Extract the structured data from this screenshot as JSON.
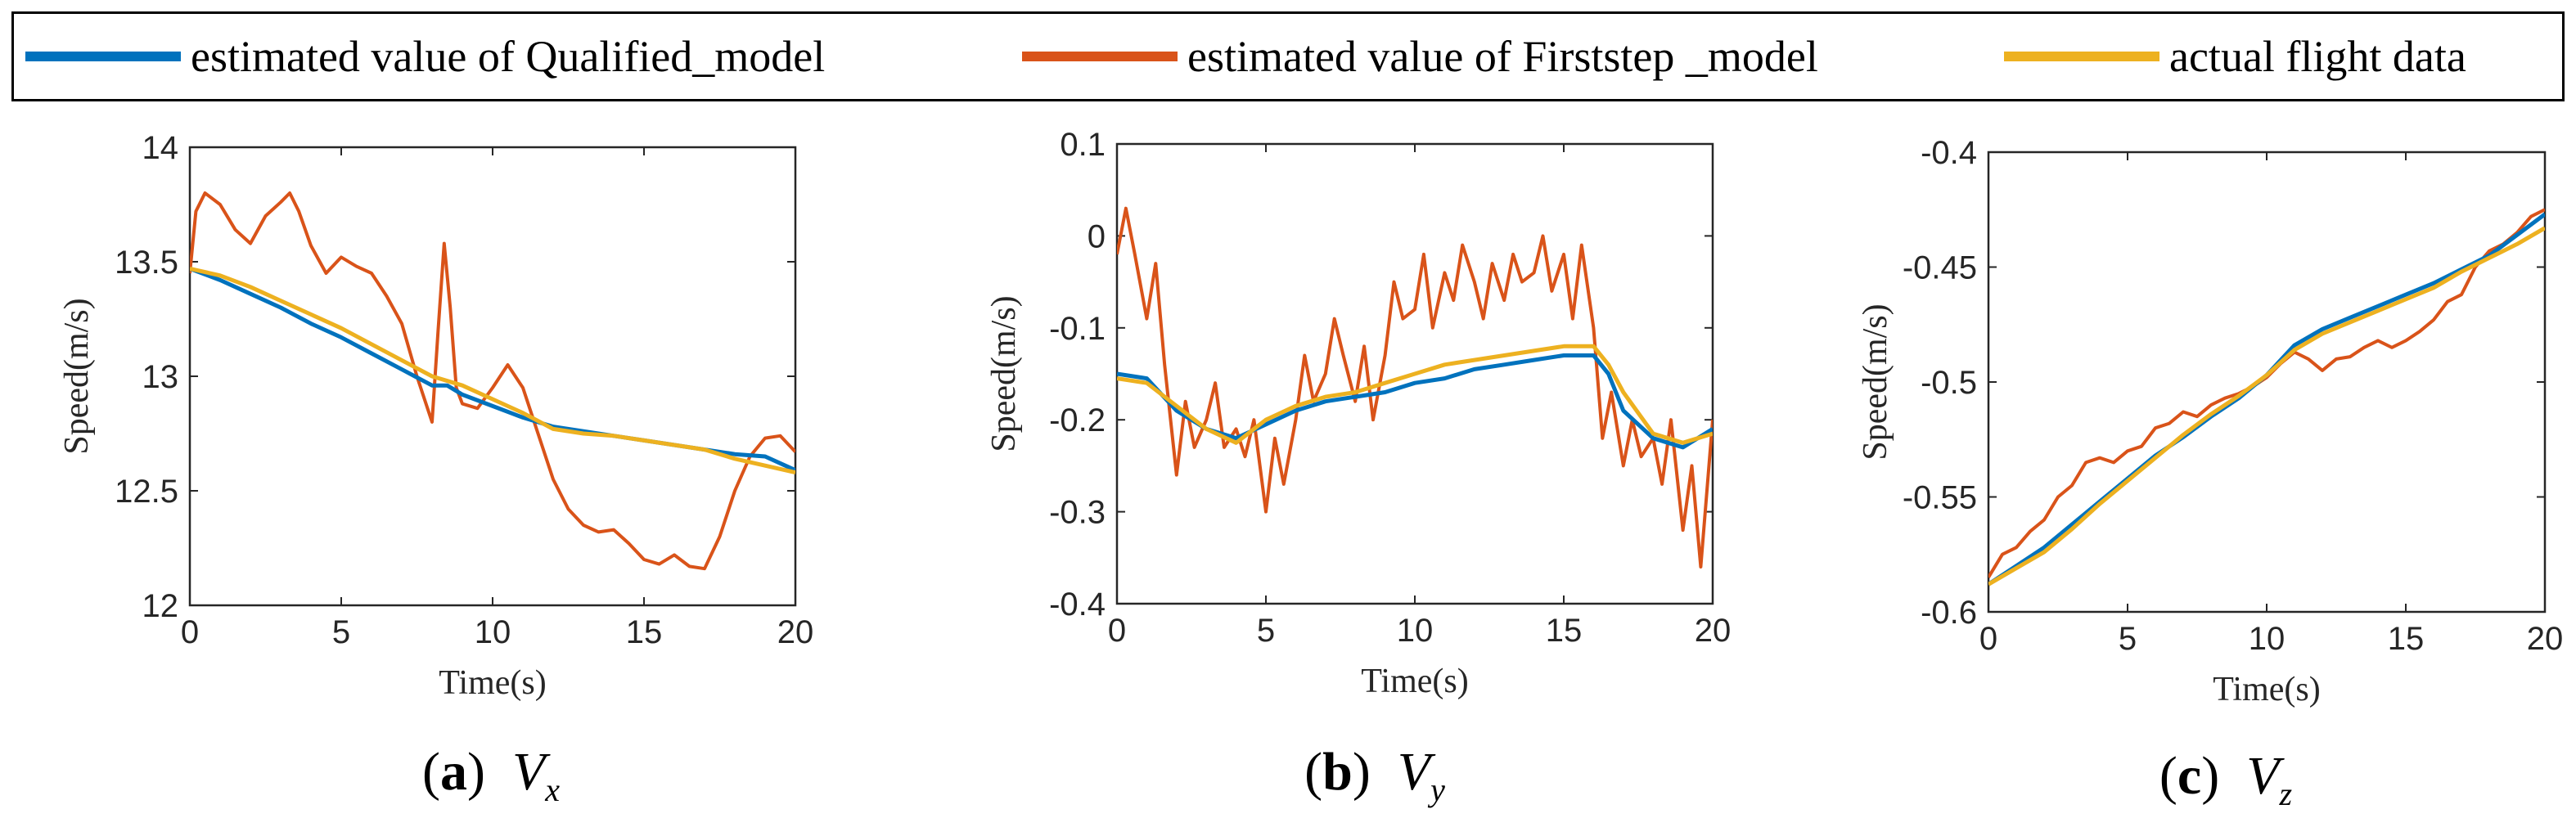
{
  "legend": {
    "items": [
      {
        "label": "estimated value of Qualified_model",
        "color": "#0072BD"
      },
      {
        "label": "estimated value of Firststep _model",
        "color": "#D95319"
      },
      {
        "label": "actual flight data",
        "color": "#EDB120"
      }
    ]
  },
  "chart_data": [
    {
      "type": "line",
      "caption": {
        "letter": "a",
        "var": "V",
        "sub": "x"
      },
      "xlabel": "Time(s)",
      "ylabel": "Speed(m/s)",
      "xlim": [
        0,
        20
      ],
      "ylim": [
        12,
        14
      ],
      "xticks": [
        0,
        5,
        10,
        15,
        20
      ],
      "yticks": [
        12,
        12.5,
        13,
        13.5,
        14
      ],
      "xtick_labels": [
        "0",
        "5",
        "10",
        "15",
        "20"
      ],
      "ytick_labels": [
        "12",
        "12.5",
        "13",
        "13.5",
        "14"
      ],
      "series": [
        {
          "name": "estimated value of Qualified_model",
          "x": [
            0,
            1,
            2,
            3,
            4,
            5,
            6,
            7,
            8,
            8.5,
            9,
            10,
            11,
            12,
            13,
            14,
            15,
            16,
            17,
            18,
            19,
            20
          ],
          "y": [
            13.47,
            13.42,
            13.36,
            13.3,
            13.23,
            13.17,
            13.1,
            13.03,
            12.96,
            12.96,
            12.92,
            12.87,
            12.82,
            12.78,
            12.76,
            12.74,
            12.72,
            12.7,
            12.68,
            12.66,
            12.65,
            12.59
          ]
        },
        {
          "name": "estimated value of Firststep _model",
          "x": [
            0,
            0.2,
            0.5,
            1,
            1.5,
            2,
            2.5,
            3,
            3.3,
            3.6,
            4,
            4.5,
            5,
            5.5,
            6,
            6.5,
            7,
            7.5,
            8,
            8.2,
            8.4,
            8.6,
            8.8,
            9,
            9.5,
            10,
            10.5,
            11,
            11.5,
            12,
            12.5,
            13,
            13.5,
            14,
            14.5,
            15,
            15.5,
            16,
            16.5,
            17,
            17.5,
            18,
            18.5,
            19,
            19.5,
            20
          ],
          "y": [
            13.45,
            13.72,
            13.8,
            13.75,
            13.64,
            13.58,
            13.7,
            13.76,
            13.8,
            13.72,
            13.57,
            13.45,
            13.52,
            13.48,
            13.45,
            13.35,
            13.23,
            13.0,
            12.8,
            13.2,
            13.58,
            13.3,
            12.95,
            12.88,
            12.86,
            12.95,
            13.05,
            12.95,
            12.75,
            12.55,
            12.42,
            12.35,
            12.32,
            12.33,
            12.27,
            12.2,
            12.18,
            12.22,
            12.17,
            12.16,
            12.3,
            12.5,
            12.65,
            12.73,
            12.74,
            12.67
          ]
        },
        {
          "name": "actual flight data",
          "x": [
            0,
            1,
            2,
            3,
            4,
            5,
            6,
            7,
            8,
            9,
            10,
            11,
            12,
            13,
            14,
            15,
            16,
            17,
            18,
            19,
            20
          ],
          "y": [
            13.47,
            13.44,
            13.39,
            13.33,
            13.27,
            13.21,
            13.14,
            13.07,
            13.0,
            12.96,
            12.9,
            12.84,
            12.77,
            12.75,
            12.74,
            12.72,
            12.7,
            12.68,
            12.64,
            12.61,
            12.58
          ]
        }
      ]
    },
    {
      "type": "line",
      "caption": {
        "letter": "b",
        "var": "V",
        "sub": "y"
      },
      "xlabel": "Time(s)",
      "ylabel": "Speed(m/s)",
      "xlim": [
        0,
        20
      ],
      "ylim": [
        -0.4,
        0.1
      ],
      "xticks": [
        0,
        5,
        10,
        15,
        20
      ],
      "yticks": [
        -0.4,
        -0.3,
        -0.2,
        -0.1,
        0,
        0.1
      ],
      "xtick_labels": [
        "0",
        "5",
        "10",
        "15",
        "20"
      ],
      "ytick_labels": [
        "-0.4",
        "-0.3",
        "-0.2",
        "-0.1",
        "0",
        "0.1"
      ],
      "series": [
        {
          "name": "estimated value of Qualified_model",
          "x": [
            0,
            1,
            2,
            3,
            4,
            5,
            6,
            7,
            8,
            9,
            10,
            11,
            12,
            13,
            14,
            15,
            16,
            16.5,
            17,
            18,
            19,
            20
          ],
          "y": [
            -0.15,
            -0.155,
            -0.19,
            -0.21,
            -0.22,
            -0.205,
            -0.19,
            -0.18,
            -0.175,
            -0.17,
            -0.16,
            -0.155,
            -0.145,
            -0.14,
            -0.135,
            -0.13,
            -0.13,
            -0.15,
            -0.19,
            -0.22,
            -0.23,
            -0.21
          ]
        },
        {
          "name": "estimated value of Firststep _model",
          "x": [
            0,
            0.3,
            0.6,
            1,
            1.3,
            1.6,
            2,
            2.3,
            2.6,
            3,
            3.3,
            3.6,
            4,
            4.3,
            4.6,
            5,
            5.3,
            5.6,
            6,
            6.3,
            6.6,
            7,
            7.3,
            7.6,
            8,
            8.3,
            8.6,
            9,
            9.3,
            9.6,
            10,
            10.3,
            10.6,
            11,
            11.3,
            11.6,
            12,
            12.3,
            12.6,
            13,
            13.3,
            13.6,
            14,
            14.3,
            14.6,
            15,
            15.3,
            15.6,
            16,
            16.3,
            16.6,
            17,
            17.3,
            17.6,
            18,
            18.3,
            18.6,
            19,
            19.3,
            19.6,
            20
          ],
          "y": [
            -0.02,
            0.03,
            -0.02,
            -0.09,
            -0.03,
            -0.14,
            -0.26,
            -0.18,
            -0.23,
            -0.2,
            -0.16,
            -0.23,
            -0.21,
            -0.24,
            -0.2,
            -0.3,
            -0.22,
            -0.27,
            -0.2,
            -0.13,
            -0.18,
            -0.15,
            -0.09,
            -0.13,
            -0.18,
            -0.12,
            -0.2,
            -0.13,
            -0.05,
            -0.09,
            -0.08,
            -0.02,
            -0.1,
            -0.04,
            -0.07,
            -0.01,
            -0.05,
            -0.09,
            -0.03,
            -0.07,
            -0.02,
            -0.05,
            -0.04,
            -0.0,
            -0.06,
            -0.02,
            -0.09,
            -0.01,
            -0.1,
            -0.22,
            -0.17,
            -0.25,
            -0.2,
            -0.24,
            -0.22,
            -0.27,
            -0.2,
            -0.32,
            -0.25,
            -0.36,
            -0.2
          ]
        },
        {
          "name": "actual flight data",
          "x": [
            0,
            1,
            2,
            3,
            4,
            5,
            6,
            7,
            8,
            9,
            10,
            11,
            12,
            13,
            14,
            15,
            16,
            16.5,
            17,
            18,
            19,
            20
          ],
          "y": [
            -0.155,
            -0.16,
            -0.185,
            -0.21,
            -0.225,
            -0.2,
            -0.185,
            -0.175,
            -0.17,
            -0.16,
            -0.15,
            -0.14,
            -0.135,
            -0.13,
            -0.125,
            -0.12,
            -0.12,
            -0.14,
            -0.17,
            -0.215,
            -0.225,
            -0.215
          ]
        }
      ]
    },
    {
      "type": "line",
      "caption": {
        "letter": "c",
        "var": "V",
        "sub": "z"
      },
      "xlabel": "Time(s)",
      "ylabel": "Speed(m/s)",
      "xlim": [
        0,
        20
      ],
      "ylim": [
        -0.6,
        -0.4
      ],
      "xticks": [
        0,
        5,
        10,
        15,
        20
      ],
      "yticks": [
        -0.6,
        -0.55,
        -0.5,
        -0.45,
        -0.4
      ],
      "xtick_labels": [
        "0",
        "5",
        "10",
        "15",
        "20"
      ],
      "ytick_labels": [
        "-0.6",
        "-0.55",
        "-0.5",
        "-0.45",
        "-0.4"
      ],
      "series": [
        {
          "name": "estimated value of Qualified_model",
          "x": [
            0,
            1,
            2,
            3,
            4,
            5,
            6,
            7,
            8,
            9,
            10,
            11,
            12,
            13,
            14,
            15,
            16,
            17,
            18,
            19,
            20
          ],
          "y": [
            -0.588,
            -0.58,
            -0.572,
            -0.562,
            -0.552,
            -0.542,
            -0.532,
            -0.524,
            -0.515,
            -0.507,
            -0.497,
            -0.484,
            -0.477,
            -0.472,
            -0.467,
            -0.462,
            -0.457,
            -0.451,
            -0.445,
            -0.436,
            -0.427
          ]
        },
        {
          "name": "estimated value of Firststep _model",
          "x": [
            0,
            0.5,
            1,
            1.5,
            2,
            2.5,
            3,
            3.5,
            4,
            4.5,
            5,
            5.5,
            6,
            6.5,
            7,
            7.5,
            8,
            8.5,
            9,
            9.5,
            10,
            10.5,
            11,
            11.5,
            12,
            12.5,
            13,
            13.5,
            14,
            14.5,
            15,
            15.5,
            16,
            16.5,
            17,
            17.5,
            18,
            18.5,
            19,
            19.5,
            20
          ],
          "y": [
            -0.585,
            -0.575,
            -0.572,
            -0.565,
            -0.56,
            -0.55,
            -0.545,
            -0.535,
            -0.533,
            -0.535,
            -0.53,
            -0.528,
            -0.52,
            -0.518,
            -0.513,
            -0.515,
            -0.51,
            -0.507,
            -0.505,
            -0.502,
            -0.498,
            -0.492,
            -0.487,
            -0.49,
            -0.495,
            -0.49,
            -0.489,
            -0.485,
            -0.482,
            -0.485,
            -0.482,
            -0.478,
            -0.473,
            -0.465,
            -0.462,
            -0.45,
            -0.443,
            -0.44,
            -0.435,
            -0.428,
            -0.425
          ]
        },
        {
          "name": "actual flight data",
          "x": [
            0,
            1,
            2,
            3,
            4,
            5,
            6,
            7,
            8,
            9,
            10,
            11,
            12,
            13,
            14,
            15,
            16,
            17,
            18,
            19,
            20
          ],
          "y": [
            -0.588,
            -0.581,
            -0.574,
            -0.564,
            -0.553,
            -0.543,
            -0.533,
            -0.523,
            -0.514,
            -0.506,
            -0.497,
            -0.486,
            -0.479,
            -0.474,
            -0.469,
            -0.464,
            -0.459,
            -0.452,
            -0.446,
            -0.44,
            -0.433
          ]
        }
      ]
    }
  ]
}
